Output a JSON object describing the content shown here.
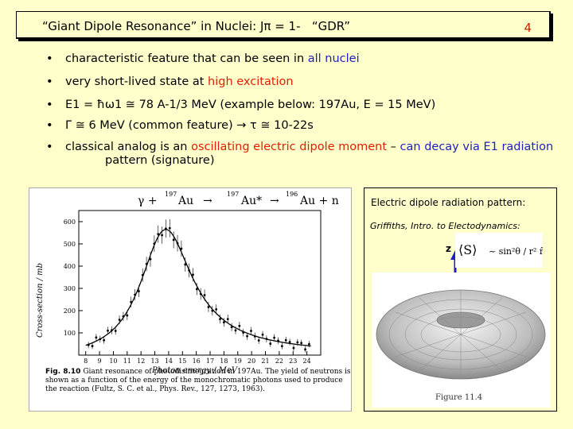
{
  "header": {
    "title": "“Giant Dipole Resonance” in Nuclei:",
    "jpi": "Jπ = 1-",
    "gdr": "“GDR”",
    "page_number": "4"
  },
  "bullets": [
    {
      "pre": "characteristic feature that can be seen in ",
      "hl": "all nuclei",
      "post": ""
    },
    {
      "pre": "very short-lived state at ",
      "hl": "high excitation",
      "post": ""
    },
    {
      "text": "E1 = ħω1 ≅ 78 A-1/3 MeV  (example below:  197Au,  E = 15 MeV)"
    },
    {
      "text": "Γ ≅ 6 MeV  (common feature)  → τ ≅ 10-22s"
    },
    {
      "pre": "classical analog is an ",
      "hl": "oscillating electric dipole moment",
      "mid": " – ",
      "hl2": "can decay via E1 radiation",
      "cont": "pattern (signature)"
    }
  ],
  "left_figure": {
    "reaction_gamma": "γ +",
    "reaction_au": "Au",
    "reaction_mass1": "197",
    "reaction_arrow1": "→",
    "reaction_au2": "Au*",
    "reaction_mass2": "197",
    "reaction_arrow2": "→",
    "reaction_au3": "Au + n",
    "reaction_mass3": "196",
    "ylabel": "Cross-section / mb",
    "xlabel": "Photon energy / MeV",
    "y_ticks": [
      "100",
      "200",
      "300",
      "400",
      "500",
      "600"
    ],
    "x_ticks": [
      "8",
      "9",
      "10",
      "11",
      "12",
      "13",
      "14",
      "15",
      "16",
      "17",
      "18",
      "19",
      "20",
      "21",
      "22",
      "23",
      "24"
    ],
    "caption_label": "Fig. 8.10",
    "caption": "Giant resonance of photodisintegration in 197Au. The yield of neutrons is shown as a function of the energy of the monochromatic photons used to produce the reaction (Fultz, S. C. et al., Phys. Rev., 127, 1273, 1963)."
  },
  "right_figure": {
    "title": "Electric dipole radiation pattern:",
    "subtitle": "Griffiths, Intro. to Electodynamics:",
    "z_label": "z",
    "formula_lhs": "⟨S⟩",
    "formula_rhs": "~  sin²θ / r²  r̂",
    "figure_label": "Figure 11.4"
  }
}
